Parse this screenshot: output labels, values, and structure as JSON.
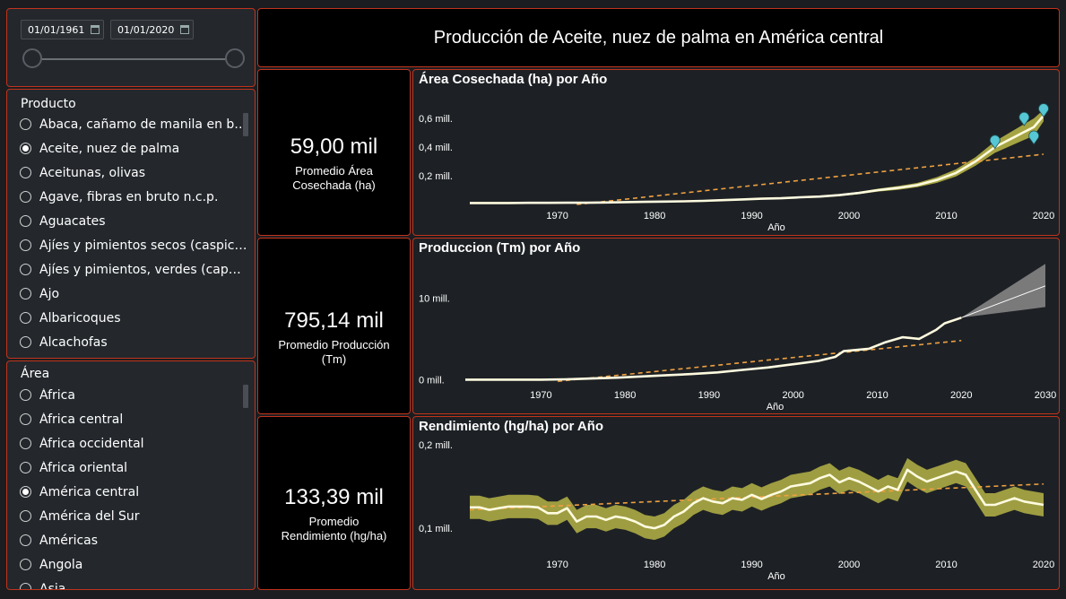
{
  "filters": {
    "date_from": "01/01/1961",
    "date_to": "01/01/2020",
    "product": {
      "title": "Producto",
      "items": [
        {
          "label": "Abaca, cañamo de manila en bruto",
          "selected": false
        },
        {
          "label": "Aceite, nuez de palma",
          "selected": true
        },
        {
          "label": "Aceitunas, olivas",
          "selected": false
        },
        {
          "label": "Agave, fibras en bruto n.c.p.",
          "selected": false
        },
        {
          "label": "Aguacates",
          "selected": false
        },
        {
          "label": "Ajíes y pimientos secos (caspicum spp.)",
          "selected": false
        },
        {
          "label": "Ajíes y pimientos, verdes (capsicum spp.)",
          "selected": false
        },
        {
          "label": "Ajo",
          "selected": false
        },
        {
          "label": "Albaricoques",
          "selected": false
        },
        {
          "label": "Alcachofas",
          "selected": false
        }
      ]
    },
    "area": {
      "title": "Área",
      "items": [
        {
          "label": "África",
          "selected": false
        },
        {
          "label": "África central",
          "selected": false
        },
        {
          "label": "África occidental",
          "selected": false
        },
        {
          "label": "África oriental",
          "selected": false
        },
        {
          "label": "América central",
          "selected": true
        },
        {
          "label": "América del Sur",
          "selected": false
        },
        {
          "label": "Américas",
          "selected": false
        },
        {
          "label": "Angola",
          "selected": false
        },
        {
          "label": "Asia",
          "selected": false
        }
      ]
    }
  },
  "header": {
    "title": "Producción de Aceite, nuez de palma en América central"
  },
  "kpis": [
    {
      "value": "59,00 mil",
      "label": "Promedio Área Cosechada (ha)"
    },
    {
      "value": "795,14 mil",
      "label": "Promedio Producción (Tm)"
    },
    {
      "value": "133,39 mil",
      "label": "Promedio Rendimiento (hg/ha)"
    }
  ],
  "colors": {
    "accent_border": "#c0341d",
    "series_line": "#fffbe0",
    "band": "#b5b346",
    "trend": "#f0a040",
    "anomaly": "#56c7d4",
    "forecast_band": "#808080"
  },
  "chart_data": [
    {
      "type": "line",
      "title": "Área Cosechada (ha) por Año",
      "xlabel": "Año",
      "ylabel": "",
      "x_ticks": [
        "1970",
        "1980",
        "1990",
        "2000",
        "2010",
        "2020"
      ],
      "y_ticks": [
        "0,2 mill.",
        "0,4 mill.",
        "0,6 mill."
      ],
      "xlim": [
        1961,
        2020
      ],
      "ylim": [
        0,
        0.75
      ],
      "x": [
        1961,
        1963,
        1965,
        1967,
        1969,
        1971,
        1973,
        1975,
        1977,
        1979,
        1981,
        1983,
        1985,
        1987,
        1989,
        1991,
        1993,
        1995,
        1997,
        1999,
        2001,
        2003,
        2005,
        2007,
        2009,
        2011,
        2013,
        2015,
        2017,
        2019,
        2020
      ],
      "values": [
        0.01,
        0.01,
        0.01,
        0.011,
        0.011,
        0.012,
        0.012,
        0.014,
        0.016,
        0.018,
        0.02,
        0.022,
        0.025,
        0.03,
        0.035,
        0.04,
        0.043,
        0.05,
        0.055,
        0.065,
        0.08,
        0.1,
        0.115,
        0.135,
        0.17,
        0.22,
        0.3,
        0.4,
        0.47,
        0.54,
        0.62
      ],
      "band_upper": [
        0.015,
        0.015,
        0.015,
        0.016,
        0.016,
        0.017,
        0.017,
        0.019,
        0.021,
        0.023,
        0.025,
        0.027,
        0.03,
        0.035,
        0.04,
        0.045,
        0.048,
        0.055,
        0.06,
        0.072,
        0.088,
        0.11,
        0.128,
        0.15,
        0.19,
        0.245,
        0.33,
        0.44,
        0.52,
        0.6,
        0.66
      ],
      "band_lower": [
        0.005,
        0.005,
        0.005,
        0.006,
        0.006,
        0.007,
        0.007,
        0.009,
        0.011,
        0.013,
        0.015,
        0.017,
        0.02,
        0.025,
        0.03,
        0.035,
        0.038,
        0.045,
        0.05,
        0.058,
        0.072,
        0.09,
        0.102,
        0.12,
        0.15,
        0.195,
        0.27,
        0.36,
        0.42,
        0.48,
        0.58
      ],
      "trend": [
        [
          1972,
          0.0
        ],
        [
          2020,
          0.35
        ]
      ],
      "anomalies": [
        [
          2015,
          0.44
        ],
        [
          2018,
          0.6
        ],
        [
          2019,
          0.47
        ],
        [
          2020,
          0.66
        ]
      ]
    },
    {
      "type": "line",
      "title": "Produccion (Tm) por Año",
      "xlabel": "Año",
      "ylabel": "",
      "x_ticks": [
        "1970",
        "1980",
        "1990",
        "2000",
        "2010",
        "2020",
        "2030"
      ],
      "y_ticks": [
        "0 mill.",
        "10 mill."
      ],
      "xlim": [
        1961,
        2030
      ],
      "ylim": [
        -0.5,
        14
      ],
      "x": [
        1961,
        1964,
        1967,
        1970,
        1973,
        1976,
        1979,
        1982,
        1985,
        1988,
        1991,
        1994,
        1997,
        2000,
        2003,
        2005,
        2006,
        2009,
        2011,
        2013,
        2015,
        2017,
        2018,
        2020
      ],
      "values": [
        0.0,
        0.0,
        0.0,
        0.0,
        0.05,
        0.15,
        0.25,
        0.4,
        0.55,
        0.7,
        0.9,
        1.2,
        1.5,
        1.9,
        2.3,
        2.8,
        3.5,
        3.8,
        4.6,
        5.2,
        5.0,
        6.1,
        6.9,
        7.6
      ],
      "forecast": {
        "x": [
          2020,
          2030
        ],
        "values": [
          7.6,
          11.5
        ],
        "upper": [
          7.6,
          14.2
        ],
        "lower": [
          7.6,
          8.9
        ]
      },
      "trend": [
        [
          1972,
          -0.2
        ],
        [
          2020,
          4.8
        ]
      ]
    },
    {
      "type": "line",
      "title": "Rendimiento (hg/ha) por Año",
      "xlabel": "Año",
      "ylabel": "",
      "x_ticks": [
        "1970",
        "1980",
        "1990",
        "2000",
        "2010",
        "2020"
      ],
      "y_ticks": [
        "0,1 mill.",
        "0,2 mill."
      ],
      "xlim": [
        1961,
        2020
      ],
      "ylim": [
        0.07,
        0.2
      ],
      "x": [
        1961,
        1962,
        1963,
        1964,
        1965,
        1966,
        1967,
        1968,
        1969,
        1970,
        1971,
        1972,
        1973,
        1974,
        1975,
        1976,
        1977,
        1978,
        1979,
        1980,
        1981,
        1982,
        1983,
        1984,
        1985,
        1986,
        1987,
        1988,
        1989,
        1990,
        1991,
        1992,
        1993,
        1994,
        1995,
        1996,
        1997,
        1998,
        1999,
        2000,
        2001,
        2002,
        2003,
        2004,
        2005,
        2006,
        2007,
        2008,
        2009,
        2010,
        2011,
        2012,
        2013,
        2014,
        2015,
        2016,
        2017,
        2018,
        2019,
        2020
      ],
      "values": [
        0.125,
        0.125,
        0.122,
        0.124,
        0.126,
        0.126,
        0.126,
        0.125,
        0.118,
        0.118,
        0.124,
        0.108,
        0.114,
        0.114,
        0.11,
        0.114,
        0.112,
        0.108,
        0.102,
        0.1,
        0.104,
        0.114,
        0.12,
        0.13,
        0.136,
        0.132,
        0.13,
        0.136,
        0.134,
        0.14,
        0.135,
        0.14,
        0.144,
        0.15,
        0.152,
        0.154,
        0.16,
        0.164,
        0.155,
        0.16,
        0.156,
        0.15,
        0.144,
        0.15,
        0.146,
        0.17,
        0.162,
        0.156,
        0.16,
        0.164,
        0.168,
        0.164,
        0.146,
        0.128,
        0.128,
        0.132,
        0.136,
        0.132,
        0.13,
        0.128
      ],
      "band_width": 0.014,
      "trend": [
        [
          1961,
          0.122
        ],
        [
          2020,
          0.153
        ]
      ]
    }
  ]
}
